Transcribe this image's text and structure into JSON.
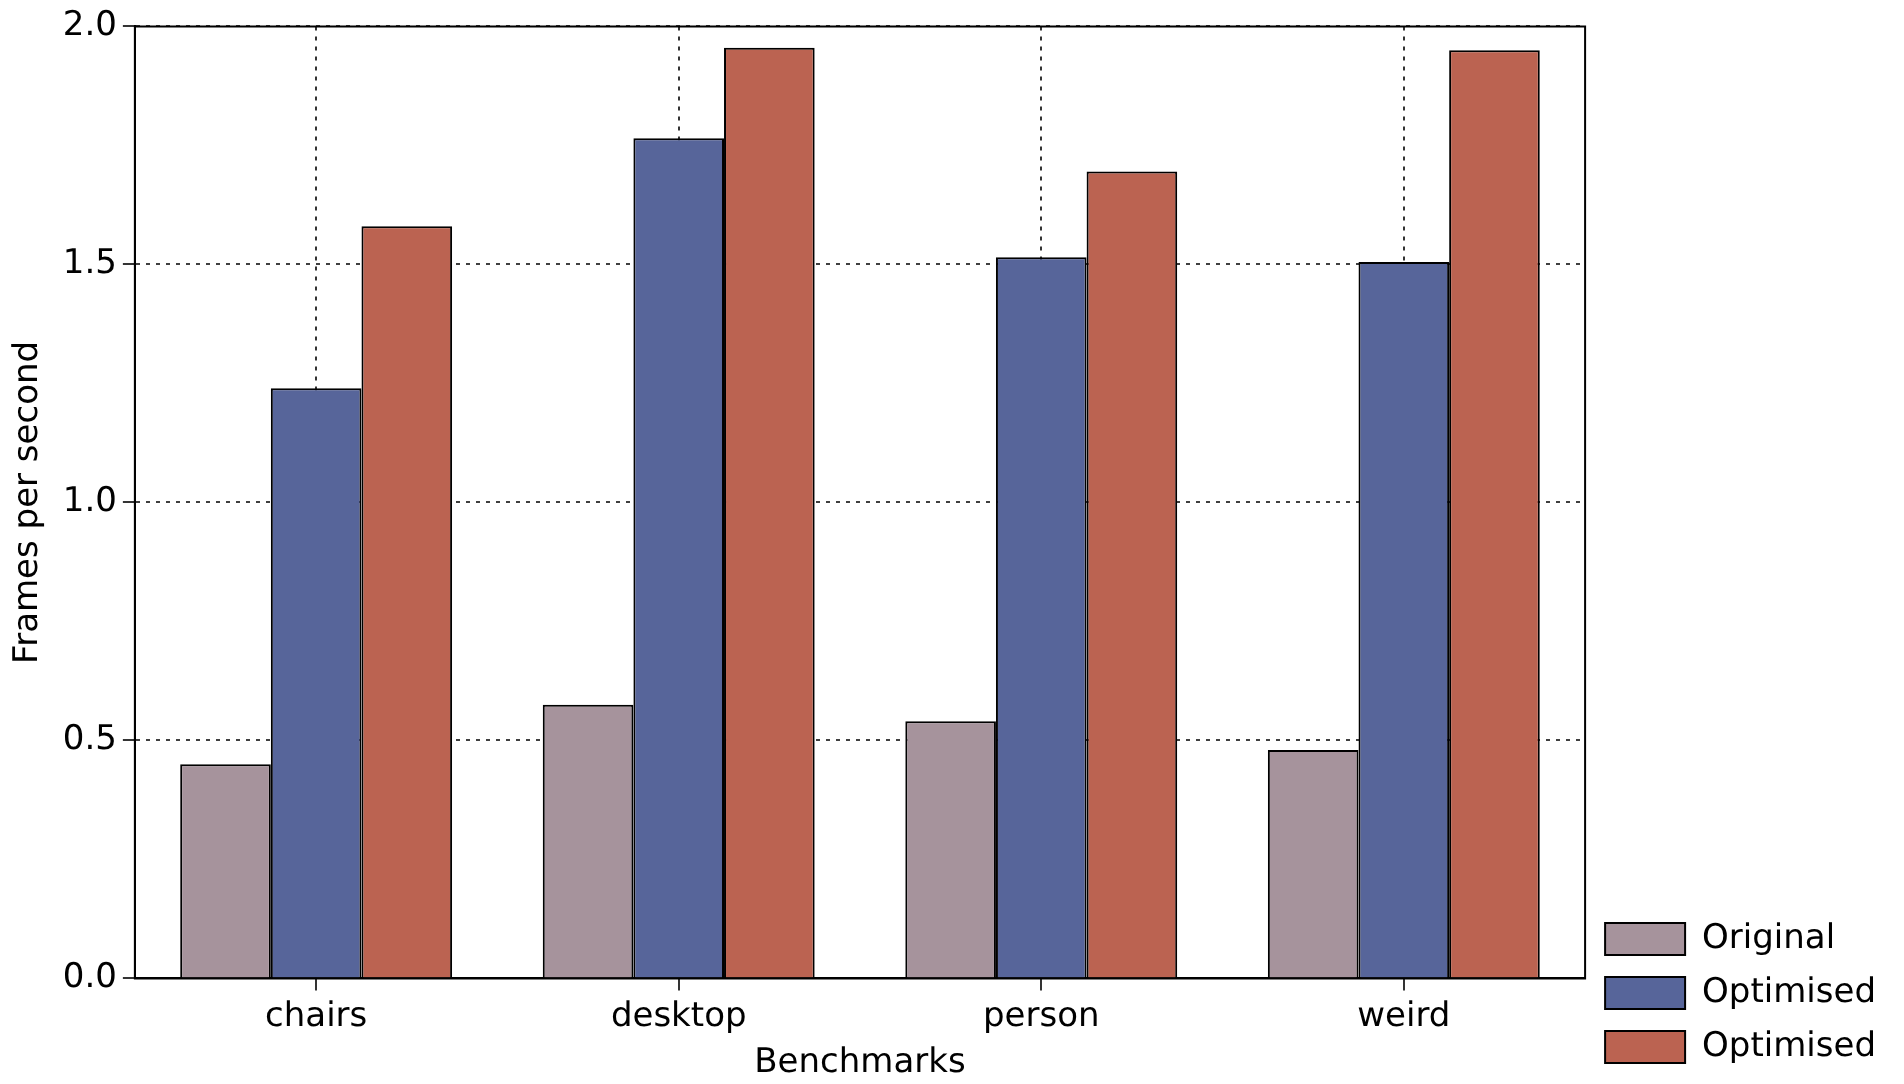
{
  "chart_data": {
    "type": "bar",
    "xlabel": "Benchmarks",
    "ylabel": "Frames per second",
    "categories": [
      "chairs",
      "desktop",
      "person",
      "weird"
    ],
    "series": [
      {
        "name": "Original",
        "color": "#a6939c",
        "values": [
          0.45,
          0.575,
          0.54,
          0.48
        ]
      },
      {
        "name": "Optimised",
        "color": "#57659a",
        "values": [
          1.24,
          1.765,
          1.515,
          1.505
        ]
      },
      {
        "name": "Optimised",
        "color": "#bb6351",
        "values": [
          1.58,
          1.955,
          1.695,
          1.95
        ]
      }
    ],
    "ylim": [
      0,
      2
    ],
    "yticks": [
      {
        "value": 0,
        "label": "0.0"
      },
      {
        "value": 0.5,
        "label": "0.5"
      },
      {
        "value": 1,
        "label": "1.0"
      },
      {
        "value": 1.5,
        "label": "1.5"
      },
      {
        "value": 2,
        "label": "2.0"
      }
    ],
    "grid": true,
    "legend": "bottom right"
  }
}
